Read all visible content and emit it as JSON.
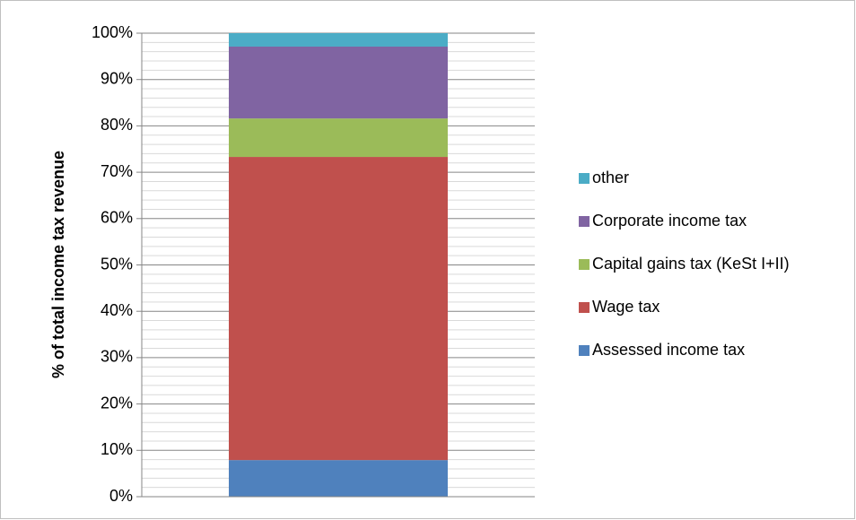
{
  "chart_data": {
    "type": "stacked_bar",
    "y_label": "% of total income tax revenue",
    "categories": [
      null
    ],
    "series": [
      {
        "name": "Assessed income tax",
        "color": "#4f81bd",
        "values": [
          7.9
        ]
      },
      {
        "name": "Wage tax",
        "color": "#c0504d",
        "values": [
          65.4
        ]
      },
      {
        "name": "Capital gains tax (KeSt I+II)",
        "color": "#9bbb59",
        "values": [
          8.3
        ]
      },
      {
        "name": "Corporate income tax",
        "color": "#8064a2",
        "values": [
          15.5
        ]
      },
      {
        "name": "other",
        "color": "#4bacc6",
        "values": [
          2.9
        ]
      }
    ],
    "ylim": [
      0,
      100
    ],
    "yticks": [
      {
        "value": 0,
        "label": "0%"
      },
      {
        "value": 10,
        "label": "10%"
      },
      {
        "value": 20,
        "label": "20%"
      },
      {
        "value": 30,
        "label": "30%"
      },
      {
        "value": 40,
        "label": "40%"
      },
      {
        "value": 50,
        "label": "50%"
      },
      {
        "value": 60,
        "label": "60%"
      },
      {
        "value": 70,
        "label": "70%"
      },
      {
        "value": 80,
        "label": "80%"
      },
      {
        "value": 90,
        "label": "90%"
      },
      {
        "value": 100,
        "label": "100%"
      }
    ],
    "minor_yticks": [
      2,
      4,
      6,
      8,
      12,
      14,
      16,
      18,
      22,
      24,
      26,
      28,
      32,
      34,
      36,
      38,
      42,
      44,
      46,
      48,
      52,
      54,
      56,
      58,
      62,
      64,
      66,
      68,
      72,
      74,
      76,
      78,
      82,
      84,
      86,
      88,
      92,
      94,
      96,
      98
    ],
    "grid": true,
    "legend": "right"
  }
}
